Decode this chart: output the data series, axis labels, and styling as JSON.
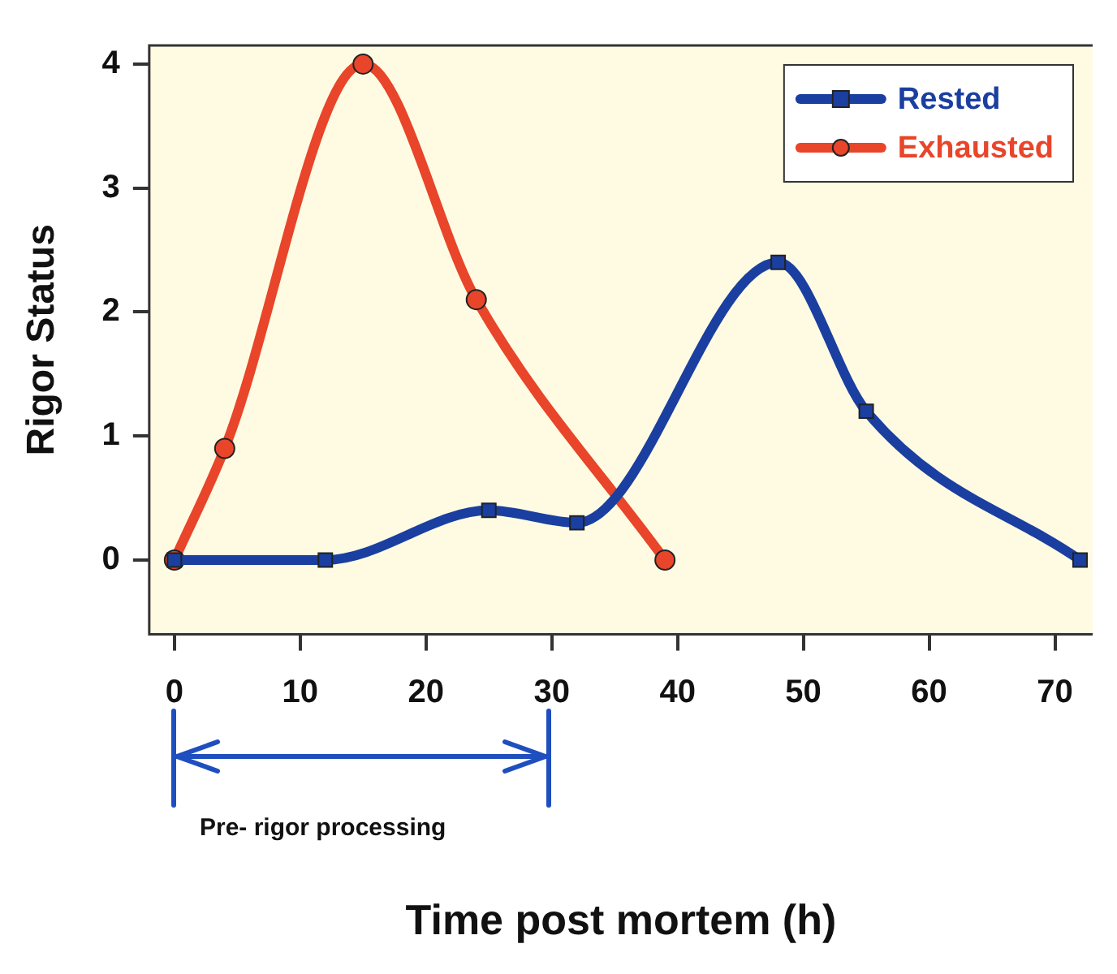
{
  "chart_data": {
    "type": "line",
    "xlabel": "Time post mortem (h)",
    "ylabel": "Rigor Status",
    "xlim": [
      -2,
      73
    ],
    "xticks": [
      0,
      10,
      20,
      30,
      40,
      50,
      60,
      70
    ],
    "ylim": [
      -0.6,
      4.15
    ],
    "yticks": [
      0,
      1,
      2,
      3,
      4
    ],
    "grid": false,
    "legend": "top right",
    "series": [
      {
        "name": "Rested",
        "color": "#1a3fa0",
        "marker": "square",
        "x": [
          0,
          12,
          25,
          32,
          48,
          55,
          72
        ],
        "values": [
          0,
          0,
          0.4,
          0.3,
          2.4,
          1.2,
          0
        ]
      },
      {
        "name": "Exhausted",
        "color": "#e8452a",
        "marker": "circle",
        "x": [
          0,
          4,
          15,
          24,
          39
        ],
        "values": [
          0,
          0.9,
          4,
          2.1,
          0
        ]
      }
    ],
    "annotations": [
      "Pre- rigor processing"
    ]
  }
}
